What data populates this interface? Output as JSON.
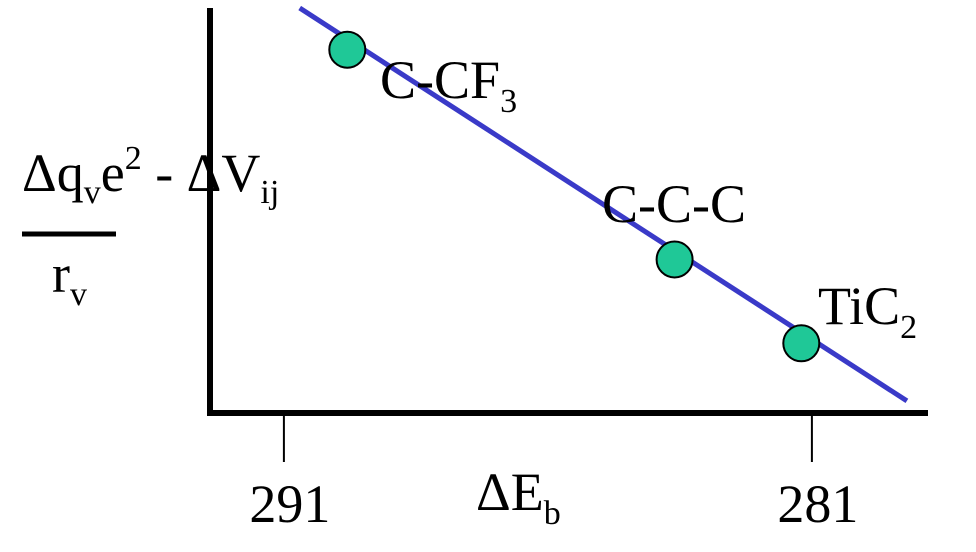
{
  "chart_data": {
    "type": "scatter",
    "title": "",
    "xlabel": {
      "main": "ΔE",
      "sub": "b"
    },
    "ylabel": {
      "numerator": {
        "a": "Δq",
        "a_sub": "v",
        "b": "e",
        "b_sup": "2",
        "c": " - ΔV",
        "c_sub": "ij"
      },
      "denominator": {
        "main": "r",
        "sub": "v"
      }
    },
    "x_reversed": true,
    "xlim": [
      292.4,
      278.8
    ],
    "ylim": [
      0,
      1
    ],
    "x_ticks": [
      291,
      281
    ],
    "grid": false,
    "points": [
      {
        "x": 289.8,
        "y": 0.897,
        "label": {
          "main": "C-CF",
          "sub": "3"
        }
      },
      {
        "x": 283.6,
        "y": 0.379,
        "label": {
          "main": "C-C-C",
          "sub": ""
        }
      },
      {
        "x": 281.2,
        "y": 0.172,
        "label": {
          "main": "TiC",
          "sub": "2"
        }
      }
    ],
    "fit_line": {
      "x": [
        290.7,
        279.2
      ],
      "y": [
        1.0,
        0.03
      ]
    },
    "colors": {
      "line": "#3a3ac8",
      "marker": "#1fc897",
      "marker_edge": "#000000",
      "axis": "#000000"
    }
  }
}
